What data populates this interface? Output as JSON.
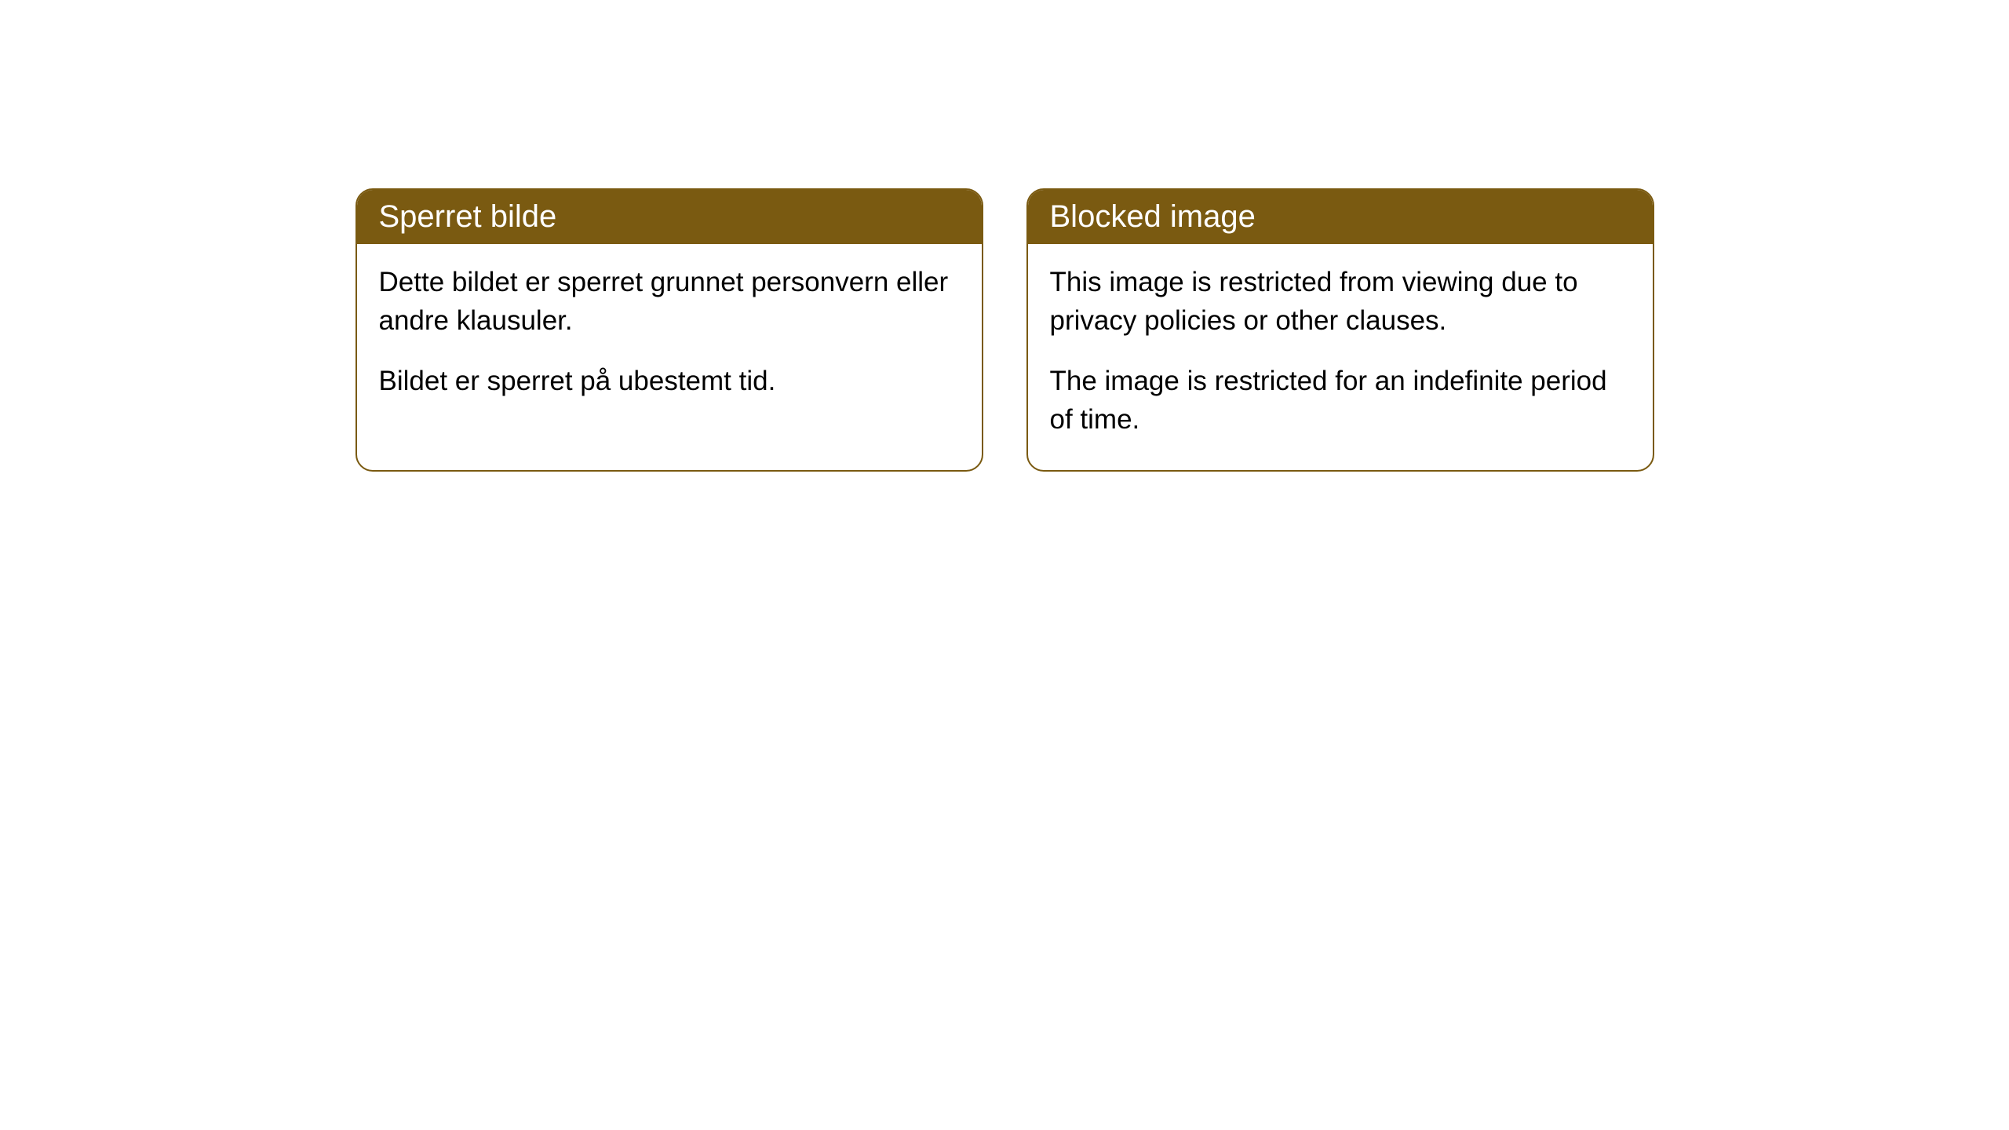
{
  "cards": [
    {
      "title": "Sperret bilde",
      "paragraphs": [
        "Dette bildet er sperret grunnet personvern eller andre klausuler.",
        "Bildet er sperret på ubestemt tid."
      ]
    },
    {
      "title": "Blocked image",
      "paragraphs": [
        "This image is restricted from viewing due to privacy policies or other clauses.",
        "The image is restricted for an indefinite period of time."
      ]
    }
  ],
  "styling": {
    "header_bg": "#7a5a11",
    "header_fg": "#ffffff",
    "card_border": "#7a5a11",
    "card_bg": "#ffffff",
    "body_fg": "#000000",
    "page_bg": "#ffffff",
    "title_fontsize": 40,
    "body_fontsize": 35,
    "border_radius": 22
  }
}
